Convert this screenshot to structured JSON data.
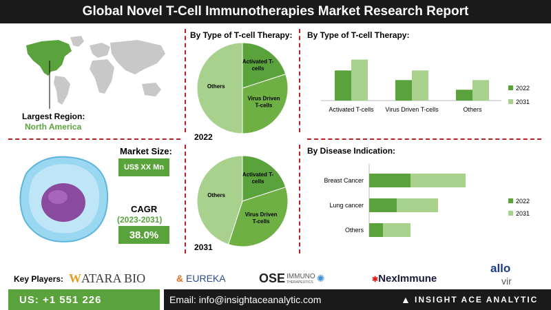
{
  "header": {
    "title": "Global Novel T-Cell Immunotherapies Market Research Report"
  },
  "region": {
    "label": "Largest Region:",
    "value": "North America"
  },
  "market_size": {
    "label": "Market Size:",
    "value": "US$ XX Mn"
  },
  "cagr": {
    "label": "CAGR",
    "period": "(2023-2031)",
    "value": "38.0%"
  },
  "key_players": {
    "label": "Key Players:",
    "logos": [
      "ATARA BIO",
      "EUREKA",
      "OSE",
      "IMMUNO",
      "THERAPEUTICS",
      "NexImmune",
      "allo",
      "vir"
    ]
  },
  "footer": {
    "phone": "US: +1 551 226",
    "email": "Email: info@insightaceanalytic.com",
    "brand": "INSIGHT ACE ANALYTIC"
  },
  "colors": {
    "dark_green": "#5aa33c",
    "light_green": "#a9d18e",
    "dashed": "#b22222"
  },
  "chart_data": [
    {
      "type": "pie",
      "title": "By Type of T-cell Therapy:",
      "year_label": "2022",
      "slices": [
        {
          "label": "Activated T-cells",
          "value": 20
        },
        {
          "label": "Virus Driven T-cells",
          "value": 30
        },
        {
          "label": "Others",
          "value": 50
        }
      ]
    },
    {
      "type": "pie",
      "year_label": "2031",
      "slices": [
        {
          "label": "Activated T-cells",
          "value": 20
        },
        {
          "label": "Virus Driven T-cells",
          "value": 35
        },
        {
          "label": "Others",
          "value": 45
        }
      ]
    },
    {
      "type": "bar",
      "title": "By Type of T-cell Therapy:",
      "categories": [
        "Activated T-cells",
        "Virus Driven T-cells",
        "Others"
      ],
      "series": [
        {
          "name": "2022",
          "values": [
            50,
            34,
            18
          ]
        },
        {
          "name": "2031",
          "values": [
            68,
            50,
            34
          ]
        }
      ],
      "legend": "right"
    },
    {
      "type": "bar",
      "orientation": "horizontal",
      "title": "By Disease Indication:",
      "categories": [
        "Breast Cancer",
        "Lung cancer",
        "Others"
      ],
      "series": [
        {
          "name": "2022",
          "values": [
            30,
            20,
            10
          ]
        },
        {
          "name": "2031",
          "values": [
            40,
            30,
            20
          ]
        }
      ],
      "stacked": true,
      "legend": "right"
    }
  ]
}
